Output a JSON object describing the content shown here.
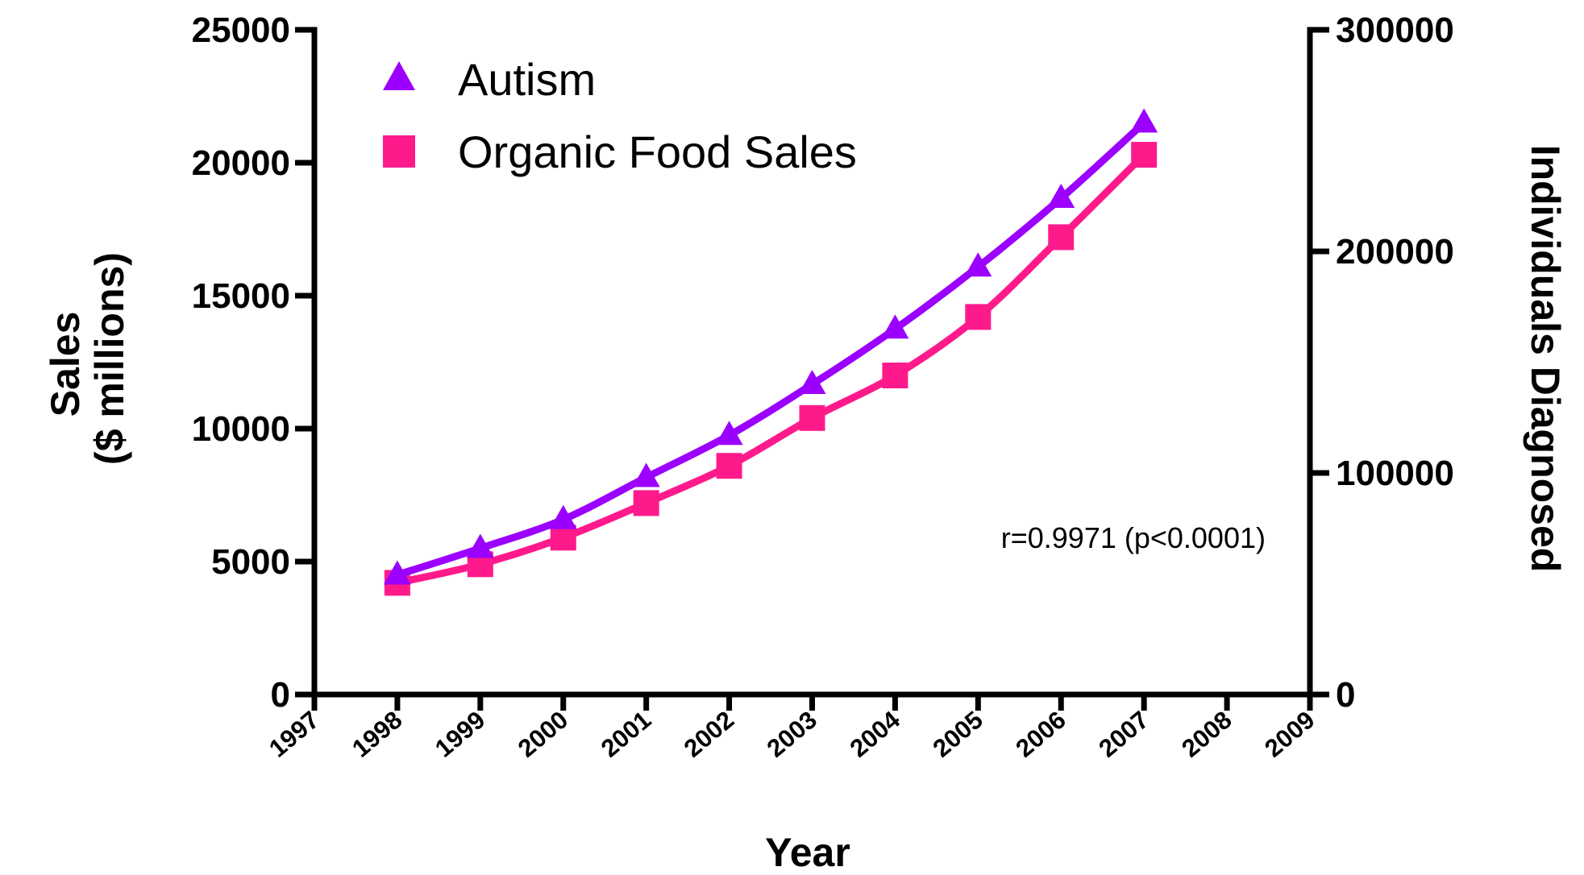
{
  "chart_data": {
    "type": "line",
    "x": [
      1998,
      1999,
      2000,
      2001,
      2002,
      2003,
      2004,
      2005,
      2006,
      2007
    ],
    "series": [
      {
        "name": "Autism",
        "axis": "right",
        "marker": "triangle",
        "color": "#9b00ff",
        "values": [
          54000,
          66000,
          79000,
          98000,
          117000,
          140000,
          165000,
          193000,
          224000,
          258000
        ]
      },
      {
        "name": "Organic Food Sales",
        "axis": "left",
        "marker": "square",
        "color": "#ff1a8c",
        "values": [
          4200,
          4900,
          5900,
          7200,
          8600,
          10400,
          12000,
          14200,
          17200,
          20300
        ]
      }
    ],
    "xlim": [
      1997,
      2009
    ],
    "x_ticks": [
      "1997",
      "1998",
      "1999",
      "2000",
      "2001",
      "2002",
      "2003",
      "2004",
      "2005",
      "2006",
      "2007",
      "2008",
      "2009"
    ],
    "ylim_left": [
      0,
      25000
    ],
    "y_ticks_left": [
      "0",
      "5000",
      "10000",
      "15000",
      "20000",
      "25000"
    ],
    "ylim_right": [
      0,
      300000
    ],
    "y_ticks_right": [
      "0",
      "100000",
      "200000",
      "300000"
    ],
    "xlabel": "Year",
    "ylabel_left": [
      "Sales",
      "($ millions)"
    ],
    "ylabel_right": "Individuals Diagnosed",
    "annotation": "r=0.9971 (p<0.0001)",
    "legend_position": "top-left",
    "grid": false
  }
}
